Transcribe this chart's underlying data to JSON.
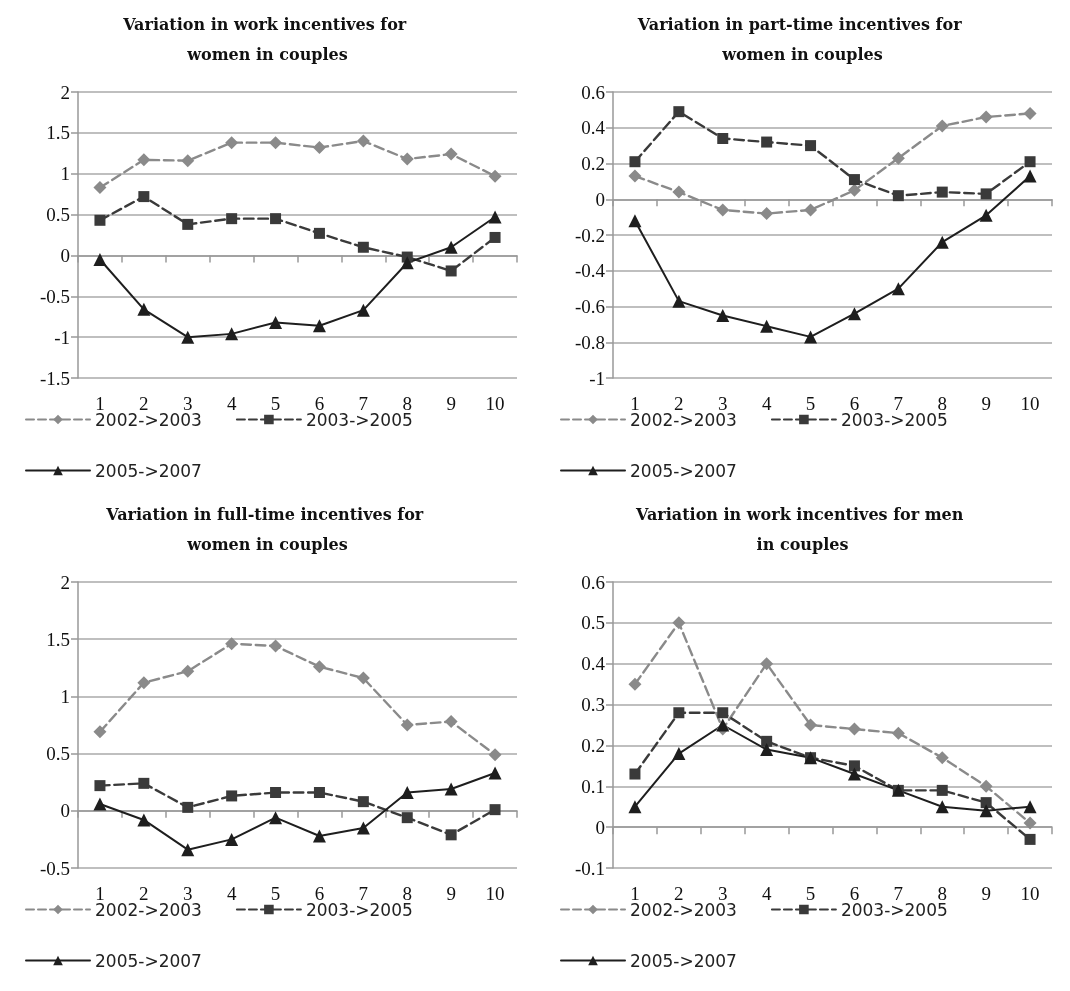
{
  "chart_data": [
    {
      "type": "line",
      "title": "Variation in work incentives for women in couples",
      "categories": [
        "1",
        "2",
        "3",
        "4",
        "5",
        "6",
        "7",
        "8",
        "9",
        "10"
      ],
      "series": [
        {
          "name": "2002->2003",
          "color": "#8a8a8a",
          "marker": "diamond",
          "line_style": "dashed",
          "values": [
            0.83,
            1.17,
            1.16,
            1.38,
            1.38,
            1.32,
            1.4,
            1.18,
            1.24,
            0.97
          ]
        },
        {
          "name": "2003->2005",
          "color": "#3a3a3a",
          "marker": "square",
          "line_style": "dashed",
          "values": [
            0.43,
            0.72,
            0.38,
            0.45,
            0.45,
            0.27,
            0.1,
            -0.02,
            -0.19,
            0.22
          ]
        },
        {
          "name": "2005->2007",
          "color": "#1e1e1e",
          "marker": "triangle",
          "line_style": "solid",
          "values": [
            -0.05,
            -0.66,
            -1.0,
            -0.96,
            -0.82,
            -0.86,
            -0.67,
            -0.09,
            0.1,
            0.47
          ]
        }
      ],
      "ylim": [
        -1.5,
        2
      ],
      "yticks": [
        -1.5,
        -1,
        -0.5,
        0,
        0.5,
        1,
        1.5,
        2
      ],
      "grid": "y",
      "legend": "bottom"
    },
    {
      "type": "line",
      "title": "Variation in part-time incentives for women in couples",
      "categories": [
        "1",
        "2",
        "3",
        "4",
        "5",
        "6",
        "7",
        "8",
        "9",
        "10"
      ],
      "series": [
        {
          "name": "2002->2003",
          "color": "#8a8a8a",
          "marker": "diamond",
          "line_style": "dashed",
          "values": [
            0.13,
            0.04,
            -0.06,
            -0.08,
            -0.06,
            0.05,
            0.23,
            0.41,
            0.46,
            0.48
          ]
        },
        {
          "name": "2003->2005",
          "color": "#3a3a3a",
          "marker": "square",
          "line_style": "dashed",
          "values": [
            0.21,
            0.49,
            0.34,
            0.32,
            0.3,
            0.11,
            0.02,
            0.04,
            0.03,
            0.21
          ]
        },
        {
          "name": "2005->2007",
          "color": "#1e1e1e",
          "marker": "triangle",
          "line_style": "solid",
          "values": [
            -0.12,
            -0.57,
            -0.65,
            -0.71,
            -0.77,
            -0.64,
            -0.5,
            -0.24,
            -0.09,
            0.13
          ]
        }
      ],
      "ylim": [
        -1,
        0.6
      ],
      "yticks": [
        -1,
        -0.8,
        -0.6,
        -0.4,
        -0.2,
        0,
        0.2,
        0.4,
        0.6
      ],
      "grid": "y",
      "legend": "bottom"
    },
    {
      "type": "line",
      "title": "Variation in full-time incentives for women in couples",
      "categories": [
        "1",
        "2",
        "3",
        "4",
        "5",
        "6",
        "7",
        "8",
        "9",
        "10"
      ],
      "series": [
        {
          "name": "2002->2003",
          "color": "#8a8a8a",
          "marker": "diamond",
          "line_style": "dashed",
          "values": [
            0.69,
            1.12,
            1.22,
            1.46,
            1.44,
            1.26,
            1.16,
            0.75,
            0.78,
            0.49
          ]
        },
        {
          "name": "2003->2005",
          "color": "#3a3a3a",
          "marker": "square",
          "line_style": "dashed",
          "values": [
            0.22,
            0.24,
            0.03,
            0.13,
            0.16,
            0.16,
            0.08,
            -0.06,
            -0.21,
            0.01
          ]
        },
        {
          "name": "2005->2007",
          "color": "#1e1e1e",
          "marker": "triangle",
          "line_style": "solid",
          "values": [
            0.06,
            -0.08,
            -0.34,
            -0.25,
            -0.06,
            -0.22,
            -0.15,
            0.16,
            0.19,
            0.33
          ]
        }
      ],
      "ylim": [
        -0.5,
        2
      ],
      "yticks": [
        -0.5,
        0,
        0.5,
        1,
        1.5,
        2
      ],
      "grid": "y",
      "legend": "bottom"
    },
    {
      "type": "line",
      "title": "Variation in work incentives for men in couples",
      "categories": [
        "1",
        "2",
        "3",
        "4",
        "5",
        "6",
        "7",
        "8",
        "9",
        "10"
      ],
      "series": [
        {
          "name": "2002->2003",
          "color": "#8a8a8a",
          "marker": "diamond",
          "line_style": "dashed",
          "values": [
            0.35,
            0.5,
            0.24,
            0.4,
            0.25,
            0.24,
            0.23,
            0.17,
            0.1,
            0.01
          ]
        },
        {
          "name": "2003->2005",
          "color": "#3a3a3a",
          "marker": "square",
          "line_style": "dashed",
          "values": [
            0.13,
            0.28,
            0.28,
            0.21,
            0.17,
            0.15,
            0.09,
            0.09,
            0.06,
            -0.03
          ]
        },
        {
          "name": "2005->2007",
          "color": "#1e1e1e",
          "marker": "triangle",
          "line_style": "solid",
          "values": [
            0.05,
            0.18,
            0.25,
            0.19,
            0.17,
            0.13,
            0.09,
            0.05,
            0.04,
            0.05
          ]
        }
      ],
      "ylim": [
        -0.1,
        0.6
      ],
      "yticks": [
        -0.1,
        0,
        0.1,
        0.2,
        0.3,
        0.4,
        0.5,
        0.6
      ],
      "grid": "y",
      "legend": "bottom"
    }
  ]
}
